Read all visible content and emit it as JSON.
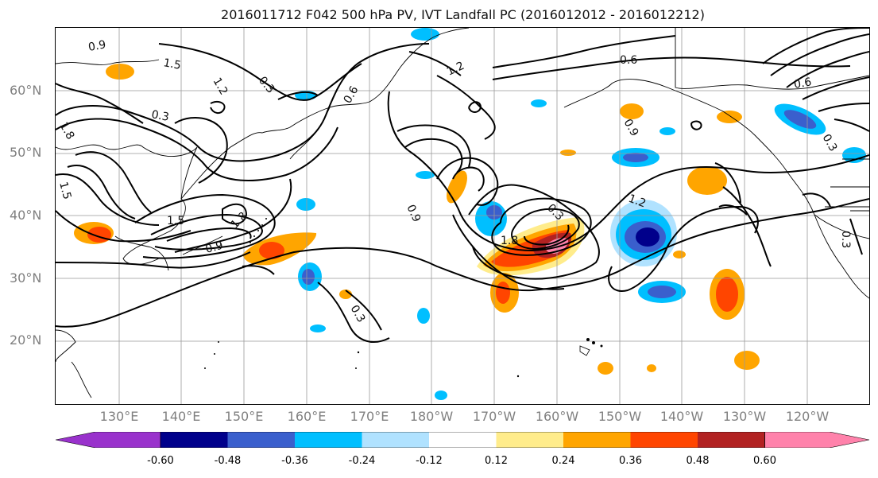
{
  "title": "2016011712 F042 500 hPa PV, IVT Landfall PC (2016012012 - 2016012212)",
  "lat_labels": [
    "60°N",
    "50°N",
    "40°N",
    "30°N",
    "20°N"
  ],
  "lon_labels": [
    "130°E",
    "140°E",
    "150°E",
    "160°E",
    "170°E",
    "180°W",
    "170°W",
    "160°W",
    "150°W",
    "140°W",
    "130°W",
    "120°W"
  ],
  "contour_labels": [
    "0.9",
    "1.5",
    "0.3",
    "1.8",
    "1.2",
    "0.6",
    "0.3",
    "1.5",
    "0.9",
    "1.8",
    "0.9",
    "1.2",
    "0.6",
    "0.3",
    "0.9",
    "1.8",
    "0.3",
    "1.2",
    "0.6",
    "0.3",
    "0.3",
    "1.5"
  ],
  "colorbar": {
    "ticks": [
      "-0.60",
      "-0.48",
      "-0.36",
      "-0.24",
      "-0.12",
      "0.12",
      "0.24",
      "0.36",
      "0.48",
      "0.60"
    ],
    "colors": [
      "#9932CC",
      "#00008B",
      "#3A5FCD",
      "#00BFFF",
      "#B0E2FF",
      "#FFFFFF",
      "#FFEC8B",
      "#FFA500",
      "#FF4500",
      "#B22222",
      "#FF82AB",
      "#FFE4E1"
    ]
  }
}
